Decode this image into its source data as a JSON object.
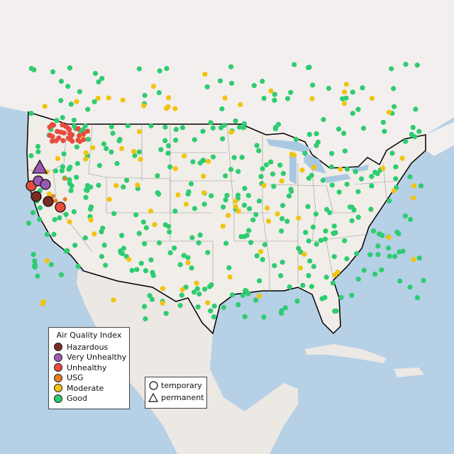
{
  "map": {
    "colors": {
      "ocean": "#b6d0e6",
      "land": "#f1ede8",
      "canada": "#f4efef",
      "mexico": "#ece8e4",
      "us_border": "#000000",
      "state_border": "#9a9a9a",
      "lakes": "#a9c8e2"
    }
  },
  "legend": {
    "title": "Air Quality Index",
    "items": [
      {
        "label": "Hazardous",
        "color": "#7b2c22"
      },
      {
        "label": "Very Unhealthy",
        "color": "#9b59b6"
      },
      {
        "label": "Unhealthy",
        "color": "#e74c3c"
      },
      {
        "label": "USG",
        "color": "#e67e22"
      },
      {
        "label": "Moderate",
        "color": "#f1c40f"
      },
      {
        "label": "Good",
        "color": "#2ecc71"
      }
    ]
  },
  "type_legend": {
    "temporary_label": "temporary",
    "permanent_label": "permanent",
    "temporary_icon": "circle-icon",
    "permanent_icon": "triangle-icon"
  }
}
